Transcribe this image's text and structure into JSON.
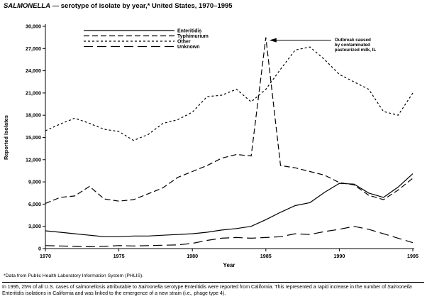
{
  "title": {
    "disease": "SALMONELLA",
    "rest": " — serotype of isolate by year,* United States, 1970–1995"
  },
  "chart_data": {
    "type": "line",
    "title": "SALMONELLA — serotype of isolate by year, United States, 1970–1995",
    "xlabel": "Year",
    "ylabel": "Reported Isolates",
    "xlim": [
      1970,
      1995
    ],
    "ylim": [
      0,
      30000
    ],
    "grid": false,
    "legend_position": "top-left-inside",
    "x": [
      1970,
      1971,
      1972,
      1973,
      1974,
      1975,
      1976,
      1977,
      1978,
      1979,
      1980,
      1981,
      1982,
      1983,
      1984,
      1985,
      1986,
      1987,
      1988,
      1989,
      1990,
      1991,
      1992,
      1993,
      1994,
      1995
    ],
    "xticks": [
      {
        "value": 1970,
        "label": "1970"
      },
      {
        "value": 1975,
        "label": "1975"
      },
      {
        "value": 1980,
        "label": "1980"
      },
      {
        "value": 1985,
        "label": "1985"
      },
      {
        "value": 1990,
        "label": "1990"
      },
      {
        "value": 1995,
        "label": "1995"
      }
    ],
    "yticks": [
      {
        "value": 0,
        "label": "0"
      },
      {
        "value": 3000,
        "label": "3,000"
      },
      {
        "value": 6000,
        "label": "6,000"
      },
      {
        "value": 9000,
        "label": "9,000"
      },
      {
        "value": 12000,
        "label": "12,000"
      },
      {
        "value": 15000,
        "label": "15,000"
      },
      {
        "value": 18000,
        "label": "18,000"
      },
      {
        "value": 21000,
        "label": "21,000"
      },
      {
        "value": 24000,
        "label": "24,000"
      },
      {
        "value": 27000,
        "label": "27,000"
      },
      {
        "value": 30000,
        "label": "30,000"
      }
    ],
    "series": [
      {
        "name": "Enteritidis",
        "line_style": "solid",
        "values": [
          2400,
          2200,
          2000,
          1800,
          1600,
          1600,
          1700,
          1700,
          1800,
          1900,
          2000,
          2200,
          2500,
          2700,
          3000,
          3900,
          4900,
          5800,
          6200,
          7600,
          8800,
          8700,
          7500,
          6900,
          8300,
          10100
        ]
      },
      {
        "name": "Typhimurium",
        "line_style": "dashed",
        "values": [
          6100,
          6900,
          7100,
          8400,
          6700,
          6400,
          6600,
          7400,
          8200,
          9600,
          10400,
          11200,
          12200,
          12700,
          12500,
          28500,
          11200,
          10900,
          10400,
          9900,
          8900,
          8600,
          7200,
          6600,
          7900,
          9500
        ]
      },
      {
        "name": "Other",
        "line_style": "short-dash",
        "values": [
          15900,
          16800,
          17600,
          16900,
          16100,
          15800,
          14600,
          15400,
          16900,
          17400,
          18400,
          20500,
          20700,
          21500,
          19800,
          21500,
          24200,
          26800,
          27200,
          25500,
          23500,
          22500,
          21500,
          18500,
          18000,
          21000
        ]
      },
      {
        "name": "Unknown",
        "line_style": "long-dash",
        "values": [
          400,
          350,
          300,
          250,
          300,
          400,
          350,
          400,
          450,
          500,
          700,
          1100,
          1400,
          1500,
          1400,
          1500,
          1600,
          2000,
          1900,
          2300,
          2600,
          3000,
          2600,
          2000,
          1400,
          800
        ]
      }
    ],
    "annotation": {
      "lines": [
        "Outbreak caused",
        "by contaminated",
        "pasteurized milk, IL"
      ],
      "target_x": 1985,
      "target_y": 28500
    }
  },
  "footnote": "*Data from Public Health Laboratory Information System (PHLIS).",
  "caption": {
    "parts": [
      "In 1995, 25% of all U.S. cases of salmonellosis attributable to ",
      "Salmonella",
      " serotype Enteritidis were reported from California. This represented a rapid increase in the number of ",
      "Salmonella",
      " Enteritidis isolations in California and was linked to the emergence of a new strain (i.e., phage type 4)."
    ]
  }
}
